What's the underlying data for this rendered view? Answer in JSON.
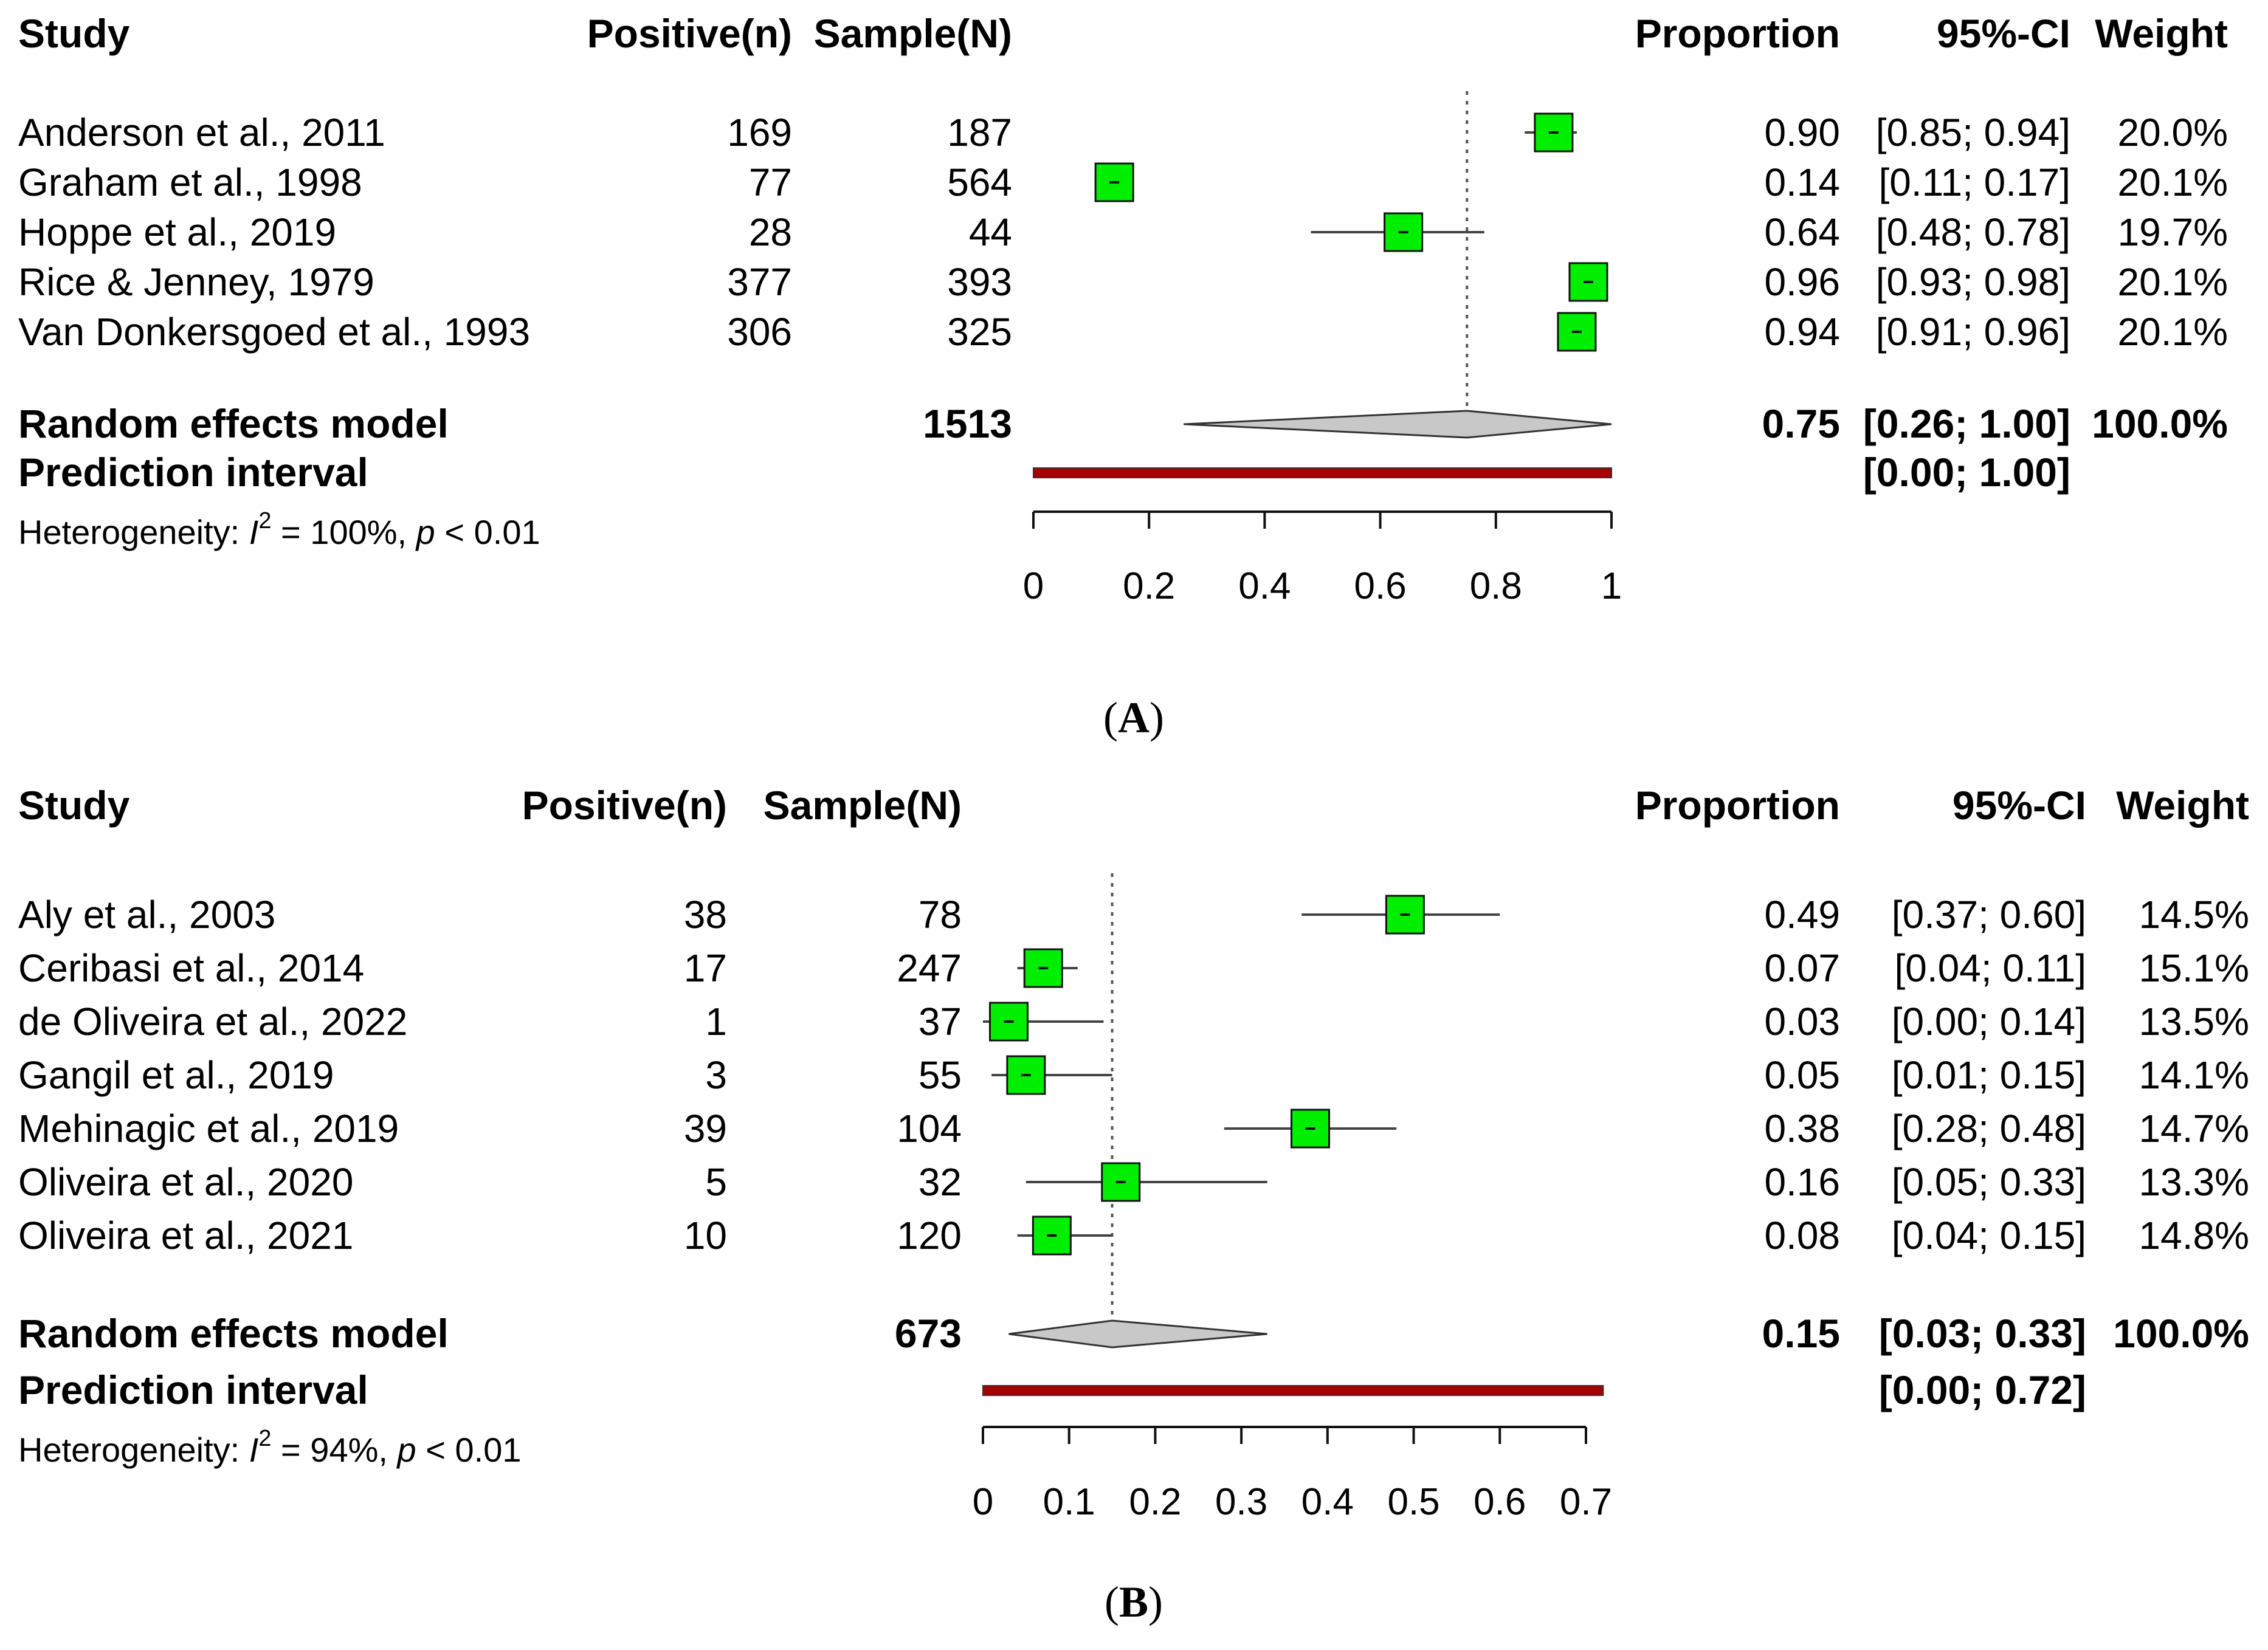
{
  "panels": [
    {
      "id": "A",
      "caption_label": "A",
      "headers": {
        "study": "Study",
        "positive": "Positive(n)",
        "sample": "Sample(N)",
        "proportion": "Proportion",
        "ci": "95%-CI",
        "weight": "Weight"
      },
      "studies": [
        {
          "name": "Anderson et al., 2011",
          "positive": "169",
          "sample": "187",
          "proportion": "0.90",
          "ci": "[0.85; 0.94]",
          "weight": "20.0%"
        },
        {
          "name": "Graham et al., 1998",
          "positive": "77",
          "sample": "564",
          "proportion": "0.14",
          "ci": "[0.11; 0.17]",
          "weight": "20.1%"
        },
        {
          "name": "Hoppe et al., 2019",
          "positive": "28",
          "sample": "44",
          "proportion": "0.64",
          "ci": "[0.48; 0.78]",
          "weight": "19.7%"
        },
        {
          "name": "Rice & Jenney, 1979",
          "positive": "377",
          "sample": "393",
          "proportion": "0.96",
          "ci": "[0.93; 0.98]",
          "weight": "20.1%"
        },
        {
          "name": "Van Donkersgoed et al., 1993",
          "positive": "306",
          "sample": "325",
          "proportion": "0.94",
          "ci": "[0.91; 0.96]",
          "weight": "20.1%"
        }
      ],
      "random": {
        "label": "Random effects model",
        "sample": "1513",
        "proportion": "0.75",
        "ci": "[0.26; 1.00]",
        "weight": "100.0%"
      },
      "prediction": {
        "label": "Prediction interval",
        "ci": "[0.00; 1.00]"
      },
      "heterogeneity": {
        "prefix": "Heterogeneity: ",
        "i": "I",
        "sup": "2",
        "mid": " = 100%, ",
        "p": "p",
        "suffix": " < 0.01"
      },
      "ticks": [
        "0",
        "0.2",
        "0.4",
        "0.6",
        "0.8",
        "1"
      ]
    },
    {
      "id": "B",
      "caption_label": "B",
      "headers": {
        "study": "Study",
        "positive": "Positive(n)",
        "sample": "Sample(N)",
        "proportion": "Proportion",
        "ci": "95%-CI",
        "weight": "Weight"
      },
      "studies": [
        {
          "name": "Aly et al., 2003",
          "positive": "38",
          "sample": "78",
          "proportion": "0.49",
          "ci": "[0.37; 0.60]",
          "weight": "14.5%"
        },
        {
          "name": "Ceribasi et al., 2014",
          "positive": "17",
          "sample": "247",
          "proportion": "0.07",
          "ci": "[0.04; 0.11]",
          "weight": "15.1%"
        },
        {
          "name": "de Oliveira et al., 2022",
          "positive": "1",
          "sample": "37",
          "proportion": "0.03",
          "ci": "[0.00; 0.14]",
          "weight": "13.5%"
        },
        {
          "name": "Gangil et al., 2019",
          "positive": "3",
          "sample": "55",
          "proportion": "0.05",
          "ci": "[0.01; 0.15]",
          "weight": "14.1%"
        },
        {
          "name": "Mehinagic et al., 2019",
          "positive": "39",
          "sample": "104",
          "proportion": "0.38",
          "ci": "[0.28; 0.48]",
          "weight": "14.7%"
        },
        {
          "name": "Oliveira et al., 2020",
          "positive": "5",
          "sample": "32",
          "proportion": "0.16",
          "ci": "[0.05; 0.33]",
          "weight": "13.3%"
        },
        {
          "name": "Oliveira et al., 2021",
          "positive": "10",
          "sample": "120",
          "proportion": "0.08",
          "ci": "[0.04; 0.15]",
          "weight": "14.8%"
        }
      ],
      "random": {
        "label": "Random effects model",
        "sample": "673",
        "proportion": "0.15",
        "ci": "[0.03; 0.33]",
        "weight": "100.0%"
      },
      "prediction": {
        "label": "Prediction interval",
        "ci": "[0.00; 0.72]"
      },
      "heterogeneity": {
        "prefix": "Heterogeneity: ",
        "i": "I",
        "sup": "2",
        "mid": " = 94%, ",
        "p": "p",
        "suffix": " < 0.01"
      },
      "ticks": [
        "0",
        "0.1",
        "0.2",
        "0.3",
        "0.4",
        "0.5",
        "0.6",
        "0.7"
      ]
    }
  ],
  "chart_data": [
    {
      "type": "forest",
      "panel": "A",
      "xlim": [
        0,
        1
      ],
      "points": [
        {
          "study": "Anderson et al., 2011",
          "estimate": 0.9,
          "lower": 0.85,
          "upper": 0.94,
          "weight": 20.0
        },
        {
          "study": "Graham et al., 1998",
          "estimate": 0.14,
          "lower": 0.11,
          "upper": 0.17,
          "weight": 20.1
        },
        {
          "study": "Hoppe et al., 2019",
          "estimate": 0.64,
          "lower": 0.48,
          "upper": 0.78,
          "weight": 19.7
        },
        {
          "study": "Rice & Jenney, 1979",
          "estimate": 0.96,
          "lower": 0.93,
          "upper": 0.98,
          "weight": 20.1
        },
        {
          "study": "Van Donkersgoed et al., 1993",
          "estimate": 0.94,
          "lower": 0.91,
          "upper": 0.96,
          "weight": 20.1
        }
      ],
      "pooled": {
        "estimate": 0.75,
        "lower": 0.26,
        "upper": 1.0
      },
      "prediction_interval": [
        0.0,
        1.0
      ]
    },
    {
      "type": "forest",
      "panel": "B",
      "xlim": [
        0,
        0.7
      ],
      "points": [
        {
          "study": "Aly et al., 2003",
          "estimate": 0.49,
          "lower": 0.37,
          "upper": 0.6,
          "weight": 14.5
        },
        {
          "study": "Ceribasi et al., 2014",
          "estimate": 0.07,
          "lower": 0.04,
          "upper": 0.11,
          "weight": 15.1
        },
        {
          "study": "de Oliveira et al., 2022",
          "estimate": 0.03,
          "lower": 0.0,
          "upper": 0.14,
          "weight": 13.5
        },
        {
          "study": "Gangil et al., 2019",
          "estimate": 0.05,
          "lower": 0.01,
          "upper": 0.15,
          "weight": 14.1
        },
        {
          "study": "Mehinagic et al., 2019",
          "estimate": 0.38,
          "lower": 0.28,
          "upper": 0.48,
          "weight": 14.7
        },
        {
          "study": "Oliveira et al., 2020",
          "estimate": 0.16,
          "lower": 0.05,
          "upper": 0.33,
          "weight": 13.3
        },
        {
          "study": "Oliveira et al., 2021",
          "estimate": 0.08,
          "lower": 0.04,
          "upper": 0.15,
          "weight": 14.8
        }
      ],
      "pooled": {
        "estimate": 0.15,
        "lower": 0.03,
        "upper": 0.33
      },
      "prediction_interval": [
        0.0,
        0.72
      ]
    }
  ],
  "colors": {
    "box": "#00ee00",
    "box_stroke": "#111111",
    "ci_line": "#444444",
    "diamond": "#c8c8c8",
    "prediction": "#a80000",
    "axis": "#111111"
  }
}
